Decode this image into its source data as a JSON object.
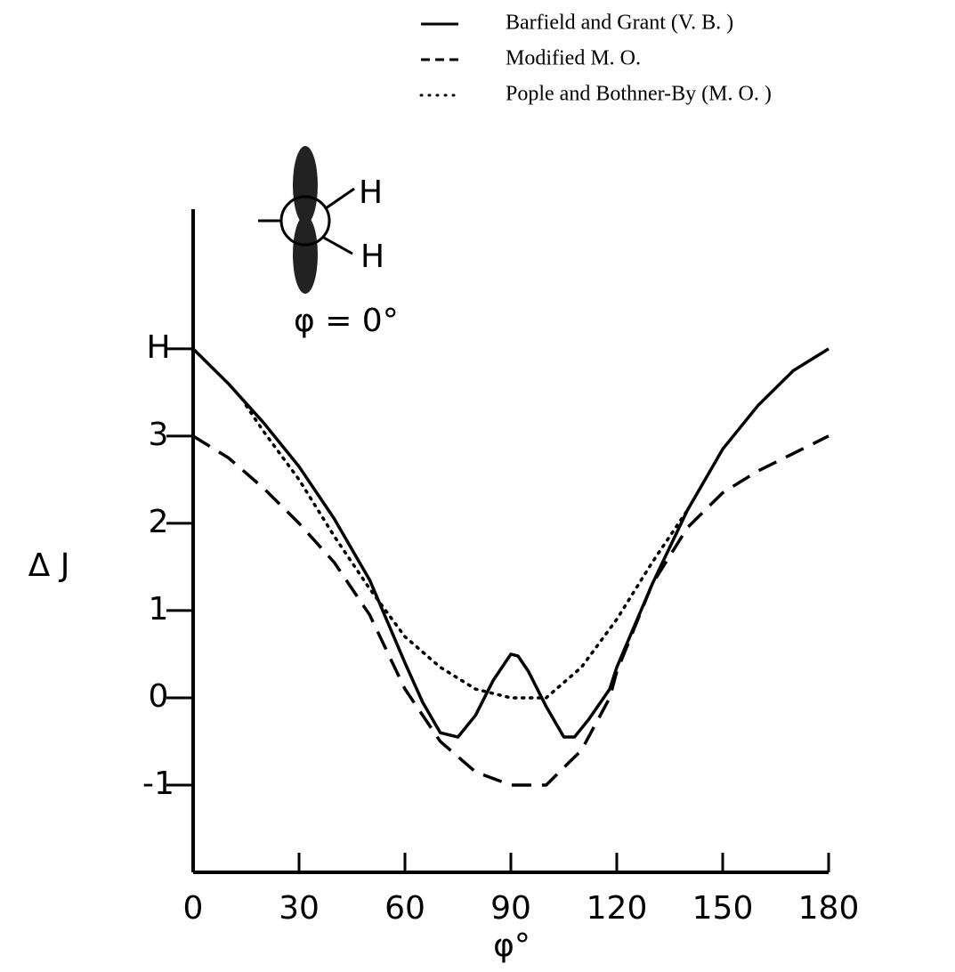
{
  "chart_data": {
    "type": "line",
    "y_label": "Δ J",
    "x_label": "φ°",
    "annotations": [
      "H",
      "H",
      "φ = 0°"
    ],
    "xlim": [
      0,
      180
    ],
    "xticks": [
      0,
      30,
      60,
      90,
      120,
      150,
      180
    ],
    "ylim": [
      -2,
      5.6
    ],
    "yticks": [
      -1,
      0,
      1,
      2,
      3,
      {
        "value": 4,
        "label": "H"
      }
    ],
    "series": [
      {
        "name": "Barfield and Grant (V. B. )",
        "color": "#000000",
        "style": "solid",
        "x": [
          0,
          10,
          20,
          30,
          40,
          50,
          60,
          65,
          70,
          75,
          80,
          85,
          90,
          92,
          95,
          100,
          105,
          108,
          112,
          118,
          120,
          130,
          140,
          150,
          160,
          170,
          180
        ],
        "values": [
          4.0,
          3.6,
          3.15,
          2.65,
          2.05,
          1.35,
          0.4,
          -0.05,
          -0.4,
          -0.45,
          -0.2,
          0.2,
          0.5,
          0.48,
          0.3,
          -0.1,
          -0.45,
          -0.45,
          -0.25,
          0.1,
          0.35,
          1.3,
          2.15,
          2.85,
          3.35,
          3.75,
          4.0
        ]
      },
      {
        "name": "Modified M. O.",
        "color": "#000000",
        "style": "dashed",
        "x": [
          0,
          10,
          20,
          30,
          40,
          50,
          60,
          70,
          80,
          90,
          100,
          110,
          118,
          120,
          130,
          140,
          150,
          160,
          170,
          180
        ],
        "values": [
          3.0,
          2.75,
          2.4,
          2.0,
          1.55,
          0.95,
          0.1,
          -0.5,
          -0.85,
          -1.0,
          -1.0,
          -0.6,
          0.0,
          0.3,
          1.3,
          1.95,
          2.35,
          2.6,
          2.8,
          3.0
        ]
      },
      {
        "name": "Pople and Bothner-By (M. O. )",
        "color": "#000000",
        "style": "dotted",
        "x": [
          15,
          20,
          30,
          40,
          50,
          60,
          70,
          80,
          90,
          100,
          110,
          120,
          130,
          140
        ],
        "values": [
          3.35,
          3.05,
          2.5,
          1.85,
          1.25,
          0.7,
          0.35,
          0.1,
          0.0,
          0.0,
          0.35,
          0.9,
          1.55,
          2.15
        ]
      }
    ]
  }
}
